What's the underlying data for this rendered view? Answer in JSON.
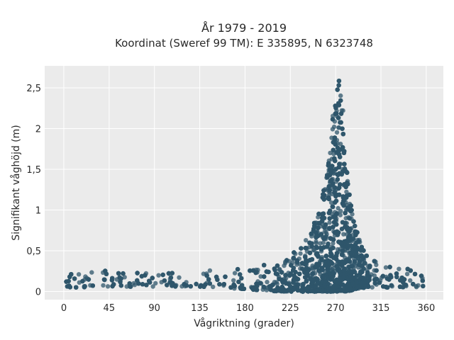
{
  "chart_data": {
    "type": "scatter",
    "title": "År 1979 - 2019",
    "subtitle": "Koordinat (Sweref 99 TM): E 335895, N 6323748",
    "xlabel": "Vågriktning (grader)",
    "ylabel": "Signifikant våghöjd (m)",
    "xlim": [
      -19,
      377
    ],
    "ylim": [
      -0.1,
      2.77
    ],
    "x_ticks": [
      0,
      45,
      90,
      135,
      180,
      225,
      270,
      315,
      360
    ],
    "x_tick_labels": [
      "0",
      "45",
      "90",
      "135",
      "180",
      "225",
      "270",
      "315",
      "360"
    ],
    "y_ticks": [
      0,
      0.5,
      1,
      1.5,
      2,
      2.5
    ],
    "y_tick_labels": [
      "0",
      "0,5",
      "1",
      "1,5",
      "2",
      "2,5"
    ],
    "grid": true,
    "legend": "none",
    "marker_color": "#2f566b",
    "plot_bg": "#ebebeb",
    "grid_color": "#ffffff",
    "envelope": {
      "direction_deg": [
        0,
        20,
        45,
        90,
        120,
        150,
        180,
        200,
        220,
        235,
        245,
        255,
        262,
        266,
        268,
        270,
        272,
        274,
        276,
        278,
        280,
        283,
        287,
        292,
        300,
        315,
        340,
        360
      ],
      "upper_height_m": [
        0.24,
        0.26,
        0.26,
        0.24,
        0.25,
        0.27,
        0.29,
        0.33,
        0.4,
        0.55,
        0.75,
        1.05,
        1.5,
        2.0,
        2.4,
        2.62,
        2.67,
        2.67,
        2.6,
        2.3,
        1.8,
        1.25,
        0.95,
        0.7,
        0.45,
        0.33,
        0.28,
        0.24
      ],
      "lower_height_m": [
        0.05,
        0.05,
        0.06,
        0.06,
        0.06,
        0.05,
        0.03,
        0.01,
        0.0,
        0.0,
        0.0,
        0.0,
        0.0,
        0.0,
        0.0,
        0.0,
        0.0,
        0.0,
        0.0,
        0.0,
        0.0,
        0.0,
        0.02,
        0.03,
        0.05,
        0.05,
        0.05,
        0.05
      ]
    }
  }
}
